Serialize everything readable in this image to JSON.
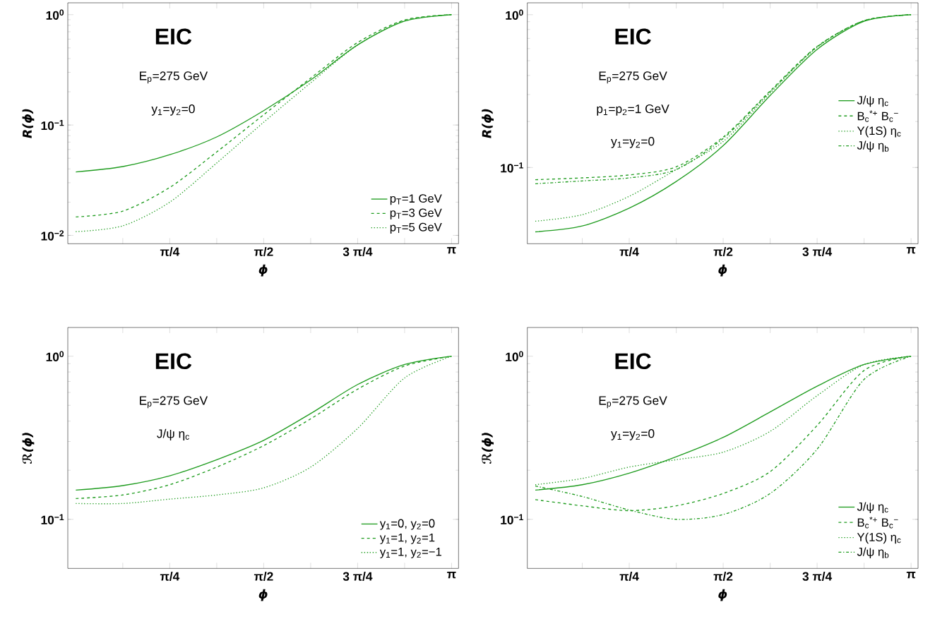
{
  "chart_data": [
    {
      "type": "line",
      "xlabel": "ϕ",
      "ylabel": "R(ϕ)",
      "log": "y",
      "legend": "bottom right",
      "ylim": [
        0.0084,
        1.28
      ],
      "xlim": [
        -0.067,
        3.2
      ],
      "xticks": [
        {
          "value": 0.3927,
          "label": null
        },
        {
          "value": 0.7854,
          "label": "π/4"
        },
        {
          "value": 1.1781,
          "label": null
        },
        {
          "value": 1.5708,
          "label": "π/2"
        },
        {
          "value": 1.9635,
          "label": null
        },
        {
          "value": 2.3562,
          "label": "3 π/4"
        },
        {
          "value": 2.7489,
          "label": null
        },
        {
          "value": 3.1416,
          "label": "π"
        }
      ],
      "yticks": [
        {
          "value": 0.01,
          "label": "10$^{−2}$"
        },
        {
          "value": 0.1,
          "label": "10$^{−1}$"
        },
        {
          "value": 1,
          "label": "10$^{0}$"
        }
      ],
      "annotations": [
        "EIC",
        "E$_{p}$=275 GeV",
        "y$_{1}$=y$_{2}$=0"
      ],
      "x": [
        0,
        0.3927,
        0.7854,
        1.1781,
        1.5708,
        1.9635,
        2.3562,
        2.7489,
        3.1416
      ],
      "series": [
        {
          "name": "p$_{T}$=1 GeV",
          "color": "#1f9c1f",
          "line_style": "solid",
          "values": [
            0.0376,
            0.042,
            0.0538,
            0.078,
            0.135,
            0.256,
            0.532,
            0.873,
            1.0
          ]
        },
        {
          "name": "p$_{T}$=3 GeV",
          "color": "#1f9c1f",
          "line_style": "dashed",
          "values": [
            0.0147,
            0.0166,
            0.0272,
            0.057,
            0.124,
            0.266,
            0.559,
            0.895,
            1.0
          ]
        },
        {
          "name": "p$_{T}$=5 GeV",
          "color": "#1f9c1f",
          "line_style": "dotted",
          "values": [
            0.0108,
            0.0122,
            0.02,
            0.0453,
            0.106,
            0.241,
            0.532,
            0.883,
            1.0
          ]
        }
      ]
    },
    {
      "type": "line",
      "xlabel": "ϕ",
      "ylabel": "R(ϕ)",
      "log": "y",
      "legend": "right",
      "ylim": [
        0.0317,
        1.196
      ],
      "xlim": [
        -0.067,
        3.2
      ],
      "xticks": [
        {
          "value": 0.3927,
          "label": null
        },
        {
          "value": 0.7854,
          "label": "π/4"
        },
        {
          "value": 1.1781,
          "label": null
        },
        {
          "value": 1.5708,
          "label": "π/2"
        },
        {
          "value": 1.9635,
          "label": null
        },
        {
          "value": 2.3562,
          "label": "3 π/4"
        },
        {
          "value": 2.7489,
          "label": null
        },
        {
          "value": 3.1416,
          "label": "π"
        }
      ],
      "yticks": [
        {
          "value": 0.1,
          "label": "10$^{−1}$"
        },
        {
          "value": 1,
          "label": "10$^{0}$"
        }
      ],
      "annotations": [
        "EIC",
        "E$_{p}$=275 GeV",
        "p$_{1}$=p$_{2}$=1 GeV",
        "y$_{1}$=y$_{2}$=0"
      ],
      "x": [
        0,
        0.3927,
        0.7854,
        1.1781,
        1.5708,
        1.9635,
        2.3562,
        2.7489,
        3.1416
      ],
      "series": [
        {
          "name": "J/ψ η$_{c}$",
          "color": "#1f9c1f",
          "line_style": "solid",
          "values": [
            0.0379,
            0.0414,
            0.0542,
            0.081,
            0.139,
            0.296,
            0.593,
            0.906,
            1.0
          ]
        },
        {
          "name": "B$_{c}$$^{*+}$ B$_{c}$$^{−}$",
          "color": "#1f9c1f",
          "line_style": "dashed",
          "values": [
            0.0832,
            0.0855,
            0.0894,
            0.101,
            0.158,
            0.317,
            0.62,
            0.914,
            1.0
          ]
        },
        {
          "name": "Υ(1S) η$_{c}$",
          "color": "#1f9c1f",
          "line_style": "dotted",
          "values": [
            0.0445,
            0.0491,
            0.0648,
            0.097,
            0.148,
            0.307,
            0.611,
            0.914,
            1.0
          ]
        },
        {
          "name": "J/ψ η$_{b}$",
          "color": "#1f9c1f",
          "line_style": "dashdot",
          "values": [
            0.0783,
            0.0817,
            0.0855,
            0.0969,
            0.155,
            0.313,
            0.617,
            0.914,
            1.0
          ]
        }
      ]
    },
    {
      "type": "line",
      "xlabel": "ϕ",
      "ylabel": "ℛ(ϕ)",
      "log": "y",
      "legend": "bottom right",
      "ylim": [
        0.05,
        1.5
      ],
      "xlim": [
        -0.067,
        3.2
      ],
      "xticks": [
        {
          "value": 0.3927,
          "label": null
        },
        {
          "value": 0.7854,
          "label": "π/4"
        },
        {
          "value": 1.1781,
          "label": null
        },
        {
          "value": 1.5708,
          "label": "π/2"
        },
        {
          "value": 1.9635,
          "label": null
        },
        {
          "value": 2.3562,
          "label": "3 π/4"
        },
        {
          "value": 2.7489,
          "label": null
        },
        {
          "value": 3.1416,
          "label": "π"
        }
      ],
      "yticks": [
        {
          "value": 0.1,
          "label": "10$^{−1}$"
        },
        {
          "value": 1,
          "label": "10$^{0}$"
        }
      ],
      "annotations": [
        "EIC",
        "E$_{p}$=275 GeV",
        "J/ψ η$_{c}$"
      ],
      "x": [
        0,
        0.3927,
        0.7854,
        1.1781,
        1.5708,
        1.9635,
        2.3562,
        2.7489,
        3.1416
      ],
      "series": [
        {
          "name": "y$_{1}$=0, y$_{2}$=0",
          "color": "#1f9c1f",
          "line_style": "solid",
          "values": [
            0.151,
            0.161,
            0.185,
            0.232,
            0.305,
            0.445,
            0.671,
            0.889,
            1.0
          ]
        },
        {
          "name": "y$_{1}$=1, y$_{2}$=1",
          "color": "#1f9c1f",
          "line_style": "dashed",
          "values": [
            0.134,
            0.141,
            0.163,
            0.209,
            0.283,
            0.413,
            0.628,
            0.871,
            1.0
          ]
        },
        {
          "name": "y$_{1}$=1, y$_{2}$=−1",
          "color": "#1f9c1f",
          "line_style": "dotted",
          "values": [
            0.125,
            0.125,
            0.133,
            0.141,
            0.156,
            0.209,
            0.361,
            0.736,
            1.0
          ]
        }
      ]
    },
    {
      "type": "line",
      "xlabel": "ϕ",
      "ylabel": "ℛ(ϕ)",
      "log": "y",
      "legend": "bottom right",
      "ylim": [
        0.05,
        1.5
      ],
      "xlim": [
        -0.067,
        3.2
      ],
      "xticks": [
        {
          "value": 0.3927,
          "label": null
        },
        {
          "value": 0.7854,
          "label": "π/4"
        },
        {
          "value": 1.1781,
          "label": null
        },
        {
          "value": 1.5708,
          "label": "π/2"
        },
        {
          "value": 1.9635,
          "label": null
        },
        {
          "value": 2.3562,
          "label": "3 π/4"
        },
        {
          "value": 2.7489,
          "label": null
        },
        {
          "value": 3.1416,
          "label": "π"
        }
      ],
      "yticks": [
        {
          "value": 0.1,
          "label": "10$^{−1}$"
        },
        {
          "value": 1,
          "label": "10$^{0}$"
        }
      ],
      "annotations": [
        "EIC",
        "E$_{p}$=275 GeV",
        "y$_{1}$=y$_{2}$=0"
      ],
      "x": [
        0,
        0.3927,
        0.7854,
        1.1781,
        1.5708,
        1.9635,
        2.3562,
        2.7489,
        3.1416
      ],
      "series": [
        {
          "name": "J/ψ η$_{c}$",
          "color": "#1f9c1f",
          "line_style": "solid",
          "values": [
            0.151,
            0.163,
            0.192,
            0.242,
            0.318,
            0.455,
            0.655,
            0.889,
            1.0
          ]
        },
        {
          "name": "B$_{c}$$^{*+}$ B$_{c}$$^{−}$",
          "color": "#1f9c1f",
          "line_style": "dashed",
          "values": [
            0.132,
            0.121,
            0.113,
            0.121,
            0.144,
            0.196,
            0.376,
            0.818,
            1.0
          ]
        },
        {
          "name": "Υ(1S) η$_{c}$",
          "color": "#1f9c1f",
          "line_style": "dotted",
          "values": [
            0.163,
            0.178,
            0.209,
            0.232,
            0.258,
            0.346,
            0.573,
            0.889,
            1.0
          ]
        },
        {
          "name": "J/ψ η$_{b}$",
          "color": "#1f9c1f",
          "line_style": "dashdot",
          "values": [
            0.16,
            0.138,
            0.114,
            0.1,
            0.107,
            0.144,
            0.269,
            0.721,
            1.0
          ]
        }
      ]
    }
  ]
}
